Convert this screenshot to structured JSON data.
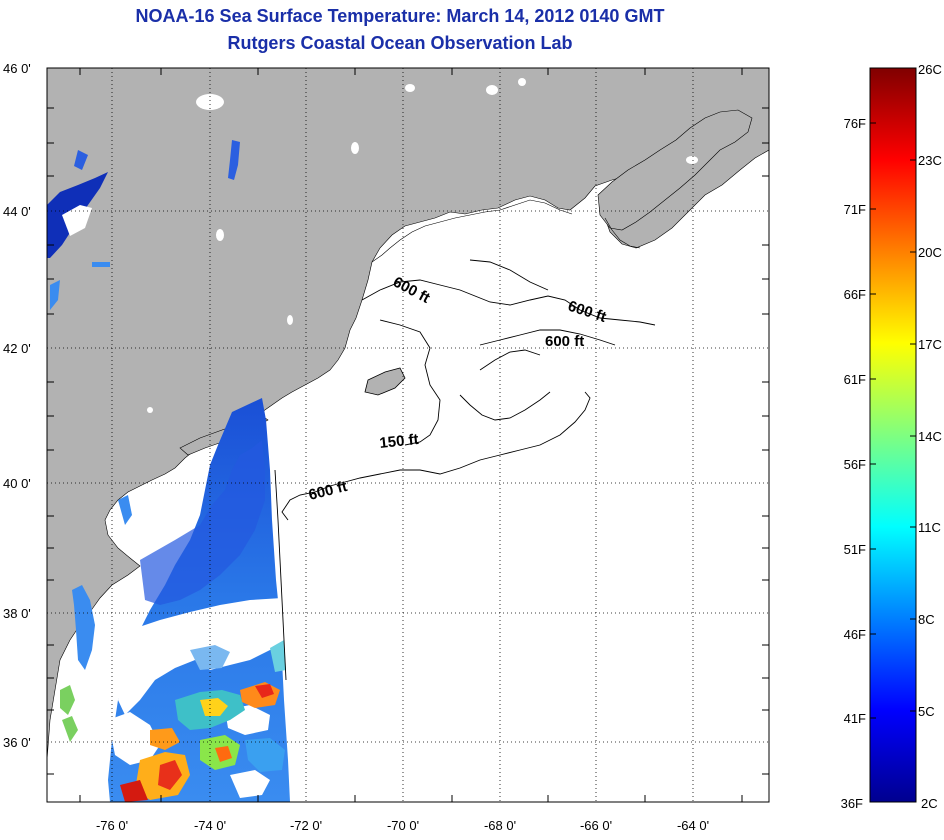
{
  "title": {
    "line1": "NOAA-16 Sea Surface Temperature:  March 14, 2012 0140 GMT",
    "line2": "Rutgers Coastal Ocean Observation Lab"
  },
  "map": {
    "lat_labels": [
      "46 0'",
      "44 0'",
      "42 0'",
      "40 0'",
      "38 0'",
      "36 0'"
    ],
    "lon_labels": [
      "-76 0'",
      "-74 0'",
      "-72 0'",
      "-70 0'",
      "-68 0'",
      "-66 0'",
      "-64 0'"
    ],
    "contour_labels": [
      "600 ft",
      "600 ft",
      "600 ft",
      "150 ft",
      "600 ft"
    ],
    "colors": {
      "land": "#b2b2b2",
      "no_data": "#ffffff",
      "grid": "#000000"
    }
  },
  "colorbar": {
    "fahrenheit": [
      "76F",
      "71F",
      "66F",
      "61F",
      "56F",
      "51F",
      "46F",
      "41F",
      "36F"
    ],
    "celsius": [
      "26C",
      "23C",
      "20C",
      "17C",
      "14C",
      "11C",
      "8C",
      "5C",
      "2C"
    ],
    "colormap": "jet"
  }
}
